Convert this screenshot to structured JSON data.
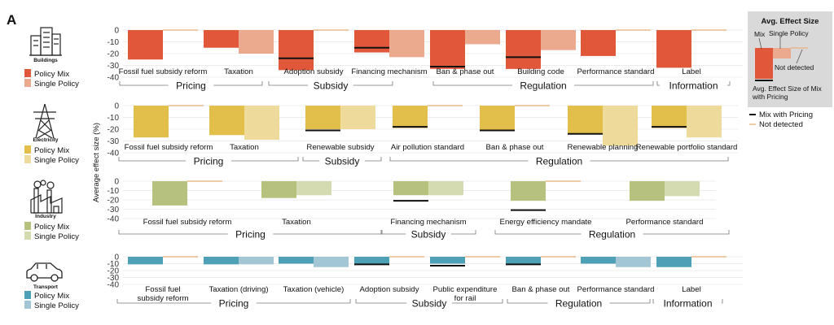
{
  "figure": {
    "panel_letter": "A",
    "y_axis_label": "Average effect size (%)"
  },
  "colors": {
    "Buildings": {
      "mix": "#e0573a",
      "single": "#ebaa8d"
    },
    "Electricity": {
      "mix": "#e2bf4a",
      "single": "#eedb9c"
    },
    "Industry": {
      "mix": "#b7c17e",
      "single": "#d5dbb1"
    },
    "Transport": {
      "mix": "#4da0b6",
      "single": "#a2c6d3"
    },
    "mix_with_pricing": "#111111",
    "not_detected": "#e8b88a"
  },
  "icons": {
    "Buildings": "buildings-icon",
    "Electricity": "power-pylon-icon",
    "Industry": "factory-icon",
    "Transport": "car-icon"
  },
  "key": {
    "title": "Avg. Effect Size",
    "mix": "Mix",
    "single": "Single Policy",
    "not_detected": "Not detected",
    "mix_with_pricing": "Avg. Effect Size of Mix with Pricing"
  },
  "bottom_legend": {
    "mix_with_pricing": "Mix with Pricing",
    "not_detected": "Not detected"
  },
  "chart_data": [
    {
      "type": "bar",
      "sector": "Buildings",
      "legend": [
        "Policy Mix",
        "Single Policy"
      ],
      "yticks": [
        0,
        -10,
        -20,
        -30,
        -40
      ],
      "ylim": [
        -40,
        0
      ],
      "categories": [
        "Fossil fuel subsidy reform",
        "Taxation",
        "Adoption subsidy",
        "Financing mechanism",
        "Ban & phase out",
        "Building code",
        "Performance standard",
        "Label"
      ],
      "series": [
        {
          "name": "Policy Mix",
          "values": [
            -25,
            -15,
            -34,
            -19,
            -33,
            -33,
            -22,
            -32
          ]
        },
        {
          "name": "Single Policy",
          "values": [
            null,
            -20,
            null,
            -23,
            -12,
            -17,
            null,
            null
          ]
        },
        {
          "name": "Mix with Pricing",
          "values": [
            null,
            null,
            -24,
            -15,
            -31,
            -23,
            null,
            null
          ]
        }
      ],
      "not_detected": {
        "mix": [
          false,
          false,
          false,
          false,
          false,
          false,
          false,
          false
        ],
        "single": [
          true,
          false,
          true,
          false,
          false,
          false,
          true,
          true
        ]
      },
      "groups": [
        {
          "label": "Pricing",
          "start": 0,
          "end": 1
        },
        {
          "label": "Subsidy",
          "start": 2,
          "end": 3
        },
        {
          "label": "Regulation",
          "start": 4,
          "end": 6
        },
        {
          "label": "Information",
          "start": 7,
          "end": 7
        }
      ]
    },
    {
      "type": "bar",
      "sector": "Electricity",
      "legend": [
        "Policy Mix",
        "Single Policy"
      ],
      "yticks": [
        0,
        -10,
        -20,
        -30,
        -40
      ],
      "ylim": [
        -40,
        0
      ],
      "categories": [
        "Fossil fuel subsidy reform",
        "Taxation",
        "Renewable subsidy",
        "Air pollution standard",
        "Ban & phase out",
        "Renewable planning",
        "Renewable portfolio standard"
      ],
      "series": [
        {
          "name": "Policy Mix",
          "values": [
            -27,
            -25,
            -20,
            -19,
            -21,
            -24,
            -19
          ]
        },
        {
          "name": "Single Policy",
          "values": [
            null,
            -29,
            -20,
            null,
            null,
            -34,
            -27
          ]
        },
        {
          "name": "Mix with Pricing",
          "values": [
            null,
            null,
            -21,
            -18,
            -21,
            -24,
            -18
          ]
        }
      ],
      "not_detected": {
        "mix": [
          false,
          false,
          false,
          false,
          false,
          false,
          false
        ],
        "single": [
          true,
          false,
          false,
          true,
          true,
          false,
          false
        ]
      },
      "groups": [
        {
          "label": "Pricing",
          "start": 0,
          "end": 1
        },
        {
          "label": "Subsidy",
          "start": 2,
          "end": 2
        },
        {
          "label": "Regulation",
          "start": 3,
          "end": 6
        }
      ]
    },
    {
      "type": "bar",
      "sector": "Industry",
      "legend": [
        "Policy Mix",
        "Single Policy"
      ],
      "yticks": [
        0,
        -10,
        -20,
        -30,
        -40
      ],
      "ylim": [
        -40,
        0
      ],
      "categories": [
        "Fossil fuel subsidy reform",
        "Taxation",
        "Financing mechanism",
        "Energy efficiency mandate",
        "Performance standard"
      ],
      "series": [
        {
          "name": "Policy Mix",
          "values": [
            -26,
            -18,
            -15,
            -21,
            -21
          ]
        },
        {
          "name": "Single Policy",
          "values": [
            null,
            -15,
            -15,
            null,
            -16
          ]
        },
        {
          "name": "Mix with Pricing",
          "values": [
            null,
            null,
            -21,
            -31,
            null
          ]
        }
      ],
      "not_detected": {
        "mix": [
          false,
          false,
          false,
          false,
          false
        ],
        "single": [
          true,
          false,
          false,
          true,
          false
        ]
      },
      "groups": [
        {
          "label": "Pricing",
          "start": 0,
          "end": 1
        },
        {
          "label": "Subsidy",
          "start": 2,
          "end": 2
        },
        {
          "label": "Regulation",
          "start": 3,
          "end": 4
        }
      ]
    },
    {
      "type": "bar",
      "sector": "Transport",
      "legend": [
        "Policy Mix",
        "Single Policy"
      ],
      "yticks": [
        0,
        -10,
        -20,
        -30,
        -40
      ],
      "ylim": [
        -40,
        0
      ],
      "categories": [
        "Fossil fuel subsidy reform",
        "Taxation (driving)",
        "Taxation (vehicle)",
        "Adoption subsidy",
        "Public expenditure for rail",
        "Ban & phase out",
        "Performance standard",
        "Label"
      ],
      "series": [
        {
          "name": "Policy Mix",
          "values": [
            -11,
            -11,
            -10,
            -10,
            -10,
            -10,
            -10,
            -15
          ]
        },
        {
          "name": "Single Policy",
          "values": [
            null,
            -11,
            -15,
            null,
            null,
            null,
            -15,
            null
          ]
        },
        {
          "name": "Mix with Pricing",
          "values": [
            null,
            null,
            null,
            -11,
            -13,
            -11,
            null,
            null
          ]
        }
      ],
      "not_detected": {
        "mix": [
          false,
          false,
          false,
          false,
          false,
          false,
          false,
          false
        ],
        "single": [
          true,
          false,
          false,
          true,
          true,
          true,
          false,
          true
        ]
      },
      "groups": [
        {
          "label": "Pricing",
          "start": 0,
          "end": 2
        },
        {
          "label": "Subsidy",
          "start": 3,
          "end": 4
        },
        {
          "label": "Regulation",
          "start": 5,
          "end": 6
        },
        {
          "label": "Information",
          "start": 7,
          "end": 7
        }
      ]
    }
  ]
}
